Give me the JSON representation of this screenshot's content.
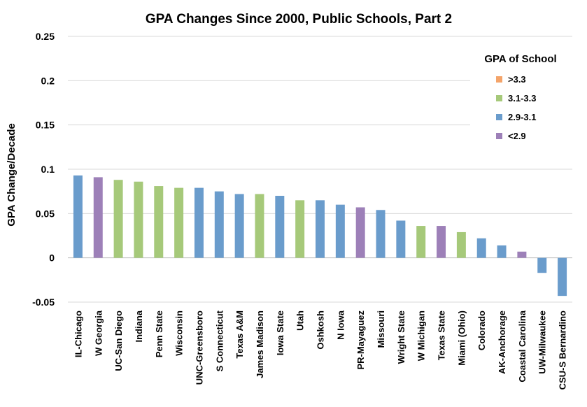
{
  "chart_data": {
    "type": "bar",
    "title": "GPA Changes Since 2000, Public Schools, Part 2",
    "xlabel": "",
    "ylabel": "GPA Change/Decade",
    "ylim": [
      -0.05,
      0.25
    ],
    "yticks": [
      "-0.05",
      "0",
      "0.05",
      "0.1",
      "0.15",
      "0.2",
      "0.25"
    ],
    "ytick_values": [
      -0.05,
      0,
      0.05,
      0.1,
      0.15,
      0.2,
      0.25
    ],
    "grid": true,
    "legend": {
      "title": "GPA of School",
      "position": "top-right",
      "entries": [
        {
          "label": ">3.3",
          "color": "#f4a46a"
        },
        {
          "label": "3.1-3.3",
          "color": "#a6c97a"
        },
        {
          "label": "2.9-3.1",
          "color": "#6a9ccc"
        },
        {
          "label": "<2.9",
          "color": "#9d80b8"
        }
      ]
    },
    "categories": [
      "IL-Chicago",
      "W Georgia",
      "UC-San Diego",
      "Indiana",
      "Penn State",
      "Wisconsin",
      "UNC-Greensboro",
      "S Connecticut",
      "Texas A&M",
      "James Madison",
      "Iowa State",
      "Utah",
      "Oshkosh",
      "N Iowa",
      "PR-Mayaguez",
      "Missouri",
      "Wright State",
      "W Michigan",
      "Texas State",
      "Miami (Ohio)",
      "Colorado",
      "AK-Anchorage",
      "Coastal Carolina",
      "UW-Milwaukee",
      "CSU-S Bernardino"
    ],
    "values": [
      0.093,
      0.091,
      0.088,
      0.086,
      0.081,
      0.079,
      0.079,
      0.075,
      0.072,
      0.072,
      0.07,
      0.065,
      0.065,
      0.06,
      0.057,
      0.054,
      0.042,
      0.036,
      0.036,
      0.029,
      0.022,
      0.014,
      0.007,
      -0.017,
      -0.043
    ],
    "groups": [
      "2.9-3.1",
      "<2.9",
      "3.1-3.3",
      "3.1-3.3",
      "3.1-3.3",
      "3.1-3.3",
      "2.9-3.1",
      "2.9-3.1",
      "2.9-3.1",
      "3.1-3.3",
      "2.9-3.1",
      "3.1-3.3",
      "2.9-3.1",
      "2.9-3.1",
      "<2.9",
      "2.9-3.1",
      "2.9-3.1",
      "3.1-3.3",
      "<2.9",
      "3.1-3.3",
      "2.9-3.1",
      "2.9-3.1",
      "<2.9",
      "2.9-3.1",
      "2.9-3.1"
    ]
  }
}
